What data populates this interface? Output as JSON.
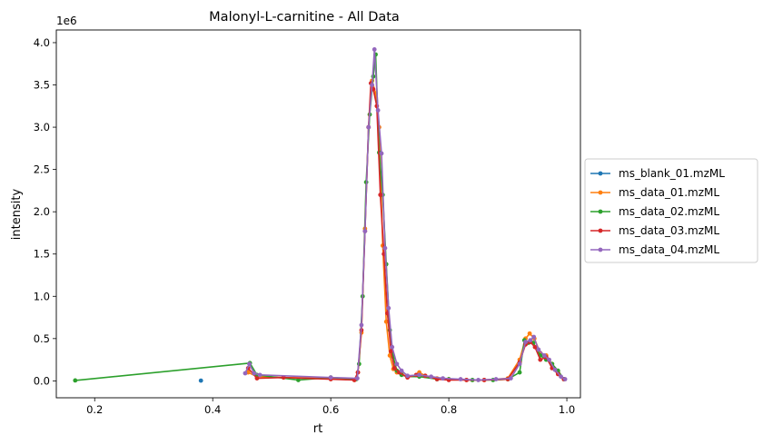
{
  "chart_data": {
    "type": "line",
    "title": "Malonyl-L-carnitine - All Data",
    "xlabel": "rt",
    "ylabel": "intensity",
    "y_offset_label": "1e6",
    "xlim": [
      0.135,
      1.023
    ],
    "ylim": [
      -0.2,
      4.15
    ],
    "y_unit_multiplier": 1000000,
    "x_ticks": [
      0.2,
      0.4,
      0.6,
      0.8,
      1.0
    ],
    "x_tick_labels": [
      "0.2",
      "0.4",
      "0.6",
      "0.8",
      "1.0"
    ],
    "y_ticks": [
      0.0,
      0.5,
      1.0,
      1.5,
      2.0,
      2.5,
      3.0,
      3.5,
      4.0
    ],
    "y_tick_labels": [
      "0.0",
      "0.5",
      "1.0",
      "1.5",
      "2.0",
      "2.5",
      "3.0",
      "3.5",
      "4.0"
    ],
    "grid": false,
    "legend_position": "center-right-outside",
    "series": [
      {
        "name": "ms_blank_01.mzML",
        "color": "#1f77b4",
        "points": [
          [
            0.38,
            0.003
          ]
        ]
      },
      {
        "name": "ms_data_01.mzML",
        "color": "#ff7f0e",
        "points": [
          [
            0.46,
            0.1
          ],
          [
            0.475,
            0.05
          ],
          [
            0.52,
            0.04
          ],
          [
            0.6,
            0.03
          ],
          [
            0.64,
            0.01
          ],
          [
            0.646,
            0.1
          ],
          [
            0.652,
            0.57
          ],
          [
            0.658,
            1.8
          ],
          [
            0.664,
            3.0
          ],
          [
            0.67,
            3.55
          ],
          [
            0.676,
            3.4
          ],
          [
            0.682,
            3.0
          ],
          [
            0.688,
            1.6
          ],
          [
            0.694,
            0.7
          ],
          [
            0.7,
            0.3
          ],
          [
            0.706,
            0.14
          ],
          [
            0.712,
            0.1
          ],
          [
            0.72,
            0.08
          ],
          [
            0.73,
            0.05
          ],
          [
            0.745,
            0.07
          ],
          [
            0.75,
            0.1
          ],
          [
            0.76,
            0.06
          ],
          [
            0.78,
            0.03
          ],
          [
            0.8,
            0.02
          ],
          [
            0.83,
            0.01
          ],
          [
            0.86,
            0.01
          ],
          [
            0.9,
            0.03
          ],
          [
            0.92,
            0.25
          ],
          [
            0.93,
            0.5
          ],
          [
            0.937,
            0.56
          ],
          [
            0.945,
            0.5
          ],
          [
            0.955,
            0.33
          ],
          [
            0.965,
            0.3
          ],
          [
            0.975,
            0.2
          ],
          [
            0.985,
            0.1
          ],
          [
            0.995,
            0.02
          ]
        ]
      },
      {
        "name": "ms_data_02.mzML",
        "color": "#2ca02c",
        "points": [
          [
            0.167,
            0.005
          ],
          [
            0.463,
            0.21
          ],
          [
            0.475,
            0.07
          ],
          [
            0.545,
            0.01
          ],
          [
            0.6,
            0.04
          ],
          [
            0.643,
            0.02
          ],
          [
            0.648,
            0.2
          ],
          [
            0.654,
            1.0
          ],
          [
            0.66,
            2.35
          ],
          [
            0.666,
            3.15
          ],
          [
            0.672,
            3.6
          ],
          [
            0.676,
            3.86
          ],
          [
            0.682,
            2.7
          ],
          [
            0.688,
            2.2
          ],
          [
            0.694,
            1.38
          ],
          [
            0.7,
            0.6
          ],
          [
            0.706,
            0.28
          ],
          [
            0.712,
            0.12
          ],
          [
            0.72,
            0.07
          ],
          [
            0.73,
            0.05
          ],
          [
            0.75,
            0.05
          ],
          [
            0.78,
            0.02
          ],
          [
            0.8,
            0.02
          ],
          [
            0.84,
            0.01
          ],
          [
            0.875,
            0.01
          ],
          [
            0.9,
            0.02
          ],
          [
            0.92,
            0.1
          ],
          [
            0.928,
            0.48
          ],
          [
            0.935,
            0.45
          ],
          [
            0.943,
            0.45
          ],
          [
            0.955,
            0.3
          ],
          [
            0.965,
            0.25
          ],
          [
            0.975,
            0.2
          ],
          [
            0.985,
            0.12
          ],
          [
            0.995,
            0.02
          ]
        ]
      },
      {
        "name": "ms_data_03.mzML",
        "color": "#d62728",
        "points": [
          [
            0.46,
            0.15
          ],
          [
            0.475,
            0.03
          ],
          [
            0.52,
            0.04
          ],
          [
            0.6,
            0.02
          ],
          [
            0.64,
            0.01
          ],
          [
            0.646,
            0.1
          ],
          [
            0.652,
            0.6
          ],
          [
            0.658,
            1.77
          ],
          [
            0.664,
            3.0
          ],
          [
            0.668,
            3.52
          ],
          [
            0.672,
            3.45
          ],
          [
            0.678,
            3.25
          ],
          [
            0.684,
            2.2
          ],
          [
            0.69,
            1.5
          ],
          [
            0.696,
            0.8
          ],
          [
            0.702,
            0.35
          ],
          [
            0.708,
            0.15
          ],
          [
            0.716,
            0.1
          ],
          [
            0.73,
            0.04
          ],
          [
            0.745,
            0.07
          ],
          [
            0.76,
            0.06
          ],
          [
            0.78,
            0.02
          ],
          [
            0.8,
            0.01
          ],
          [
            0.83,
            0.01
          ],
          [
            0.86,
            0.01
          ],
          [
            0.9,
            0.02
          ],
          [
            0.92,
            0.22
          ],
          [
            0.93,
            0.43
          ],
          [
            0.938,
            0.46
          ],
          [
            0.946,
            0.4
          ],
          [
            0.955,
            0.25
          ],
          [
            0.965,
            0.28
          ],
          [
            0.975,
            0.15
          ],
          [
            0.985,
            0.08
          ],
          [
            0.995,
            0.02
          ]
        ]
      },
      {
        "name": "ms_data_04.mzML",
        "color": "#9467bd",
        "points": [
          [
            0.455,
            0.09
          ],
          [
            0.462,
            0.2
          ],
          [
            0.47,
            0.09
          ],
          [
            0.48,
            0.07
          ],
          [
            0.6,
            0.04
          ],
          [
            0.645,
            0.03
          ],
          [
            0.652,
            0.66
          ],
          [
            0.658,
            1.77
          ],
          [
            0.664,
            3.0
          ],
          [
            0.67,
            3.5
          ],
          [
            0.674,
            3.92
          ],
          [
            0.68,
            3.2
          ],
          [
            0.686,
            2.69
          ],
          [
            0.692,
            1.57
          ],
          [
            0.698,
            0.86
          ],
          [
            0.704,
            0.4
          ],
          [
            0.712,
            0.2
          ],
          [
            0.72,
            0.12
          ],
          [
            0.73,
            0.06
          ],
          [
            0.75,
            0.07
          ],
          [
            0.77,
            0.05
          ],
          [
            0.79,
            0.03
          ],
          [
            0.82,
            0.02
          ],
          [
            0.85,
            0.01
          ],
          [
            0.88,
            0.02
          ],
          [
            0.905,
            0.03
          ],
          [
            0.92,
            0.2
          ],
          [
            0.93,
            0.46
          ],
          [
            0.938,
            0.48
          ],
          [
            0.944,
            0.52
          ],
          [
            0.952,
            0.37
          ],
          [
            0.962,
            0.3
          ],
          [
            0.97,
            0.25
          ],
          [
            0.98,
            0.13
          ],
          [
            0.99,
            0.05
          ],
          [
            0.997,
            0.02
          ]
        ]
      }
    ]
  }
}
